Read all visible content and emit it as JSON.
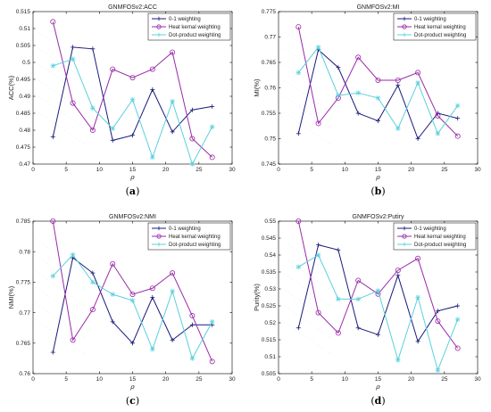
{
  "colors": {
    "s0": "#1a1a7a",
    "s1": "#9a2aa8",
    "s2": "#5ad0dc"
  },
  "chart_data": [
    {
      "type": "line",
      "panel": "a",
      "title": "GNMFOSv2:ACC",
      "xlabel": "ρ",
      "ylabel": "ACC(%)",
      "xlim": [
        0,
        30
      ],
      "ylim": [
        0.47,
        0.515
      ],
      "xticks": [
        0,
        5,
        10,
        15,
        20,
        25,
        30
      ],
      "yticks": [
        0.47,
        0.475,
        0.48,
        0.485,
        0.49,
        0.495,
        0.5,
        0.505,
        0.51,
        0.515
      ],
      "ytick_labels": [
        "0.47",
        "0.475",
        "0.48",
        "0.485",
        "0.49",
        "0.495",
        "0.5",
        "0.505",
        "0.51",
        "0.515"
      ],
      "x": [
        3,
        6,
        9,
        12,
        15,
        18,
        21,
        24,
        27
      ],
      "grid": false,
      "legend": "top-right",
      "series": [
        {
          "name": "0-1 weighting",
          "values": [
            0.478,
            0.5045,
            0.504,
            0.477,
            0.4785,
            0.492,
            0.4795,
            0.486,
            0.487
          ]
        },
        {
          "name": "Heat kernal weighting",
          "values": [
            0.512,
            0.488,
            0.48,
            0.498,
            0.4955,
            0.498,
            0.503,
            0.4775,
            0.472
          ]
        },
        {
          "name": "Dot-product weighting",
          "values": [
            0.499,
            0.501,
            0.4865,
            0.4805,
            0.489,
            0.472,
            0.4885,
            0.47,
            0.481
          ]
        }
      ]
    },
    {
      "type": "line",
      "panel": "b",
      "title": "GNMFOSv2:MI",
      "xlabel": "ρ",
      "ylabel": "MI(%)",
      "xlim": [
        0,
        30
      ],
      "ylim": [
        0.745,
        0.775
      ],
      "xticks": [
        0,
        5,
        10,
        15,
        20,
        25,
        30
      ],
      "yticks": [
        0.745,
        0.75,
        0.755,
        0.76,
        0.765,
        0.77,
        0.775
      ],
      "ytick_labels": [
        "0.745",
        "0.75",
        "0.755",
        "0.76",
        "0.765",
        "0.77",
        "0.775"
      ],
      "x": [
        3,
        6,
        9,
        12,
        15,
        18,
        21,
        24,
        27
      ],
      "grid": false,
      "legend": "top-right",
      "series": [
        {
          "name": "0-1 weighting",
          "values": [
            0.751,
            0.7675,
            0.764,
            0.755,
            0.7535,
            0.7605,
            0.75,
            0.755,
            0.754
          ]
        },
        {
          "name": "Heat kernal weighting",
          "values": [
            0.772,
            0.753,
            0.758,
            0.766,
            0.7615,
            0.7615,
            0.763,
            0.7545,
            0.7505
          ]
        },
        {
          "name": "Dot-product weighting",
          "values": [
            0.763,
            0.768,
            0.7585,
            0.759,
            0.758,
            0.752,
            0.761,
            0.751,
            0.7565
          ]
        }
      ]
    },
    {
      "type": "line",
      "panel": "c",
      "title": "GNMFOSv2:NMI",
      "xlabel": "ρ",
      "ylabel": "NMI(%)",
      "xlim": [
        0,
        30
      ],
      "ylim": [
        0.76,
        0.785
      ],
      "xticks": [
        0,
        5,
        10,
        15,
        20,
        25,
        30
      ],
      "yticks": [
        0.76,
        0.765,
        0.77,
        0.775,
        0.78,
        0.785
      ],
      "ytick_labels": [
        "0.76",
        "0.765",
        "0.77",
        "0.775",
        "0.78",
        "0.785"
      ],
      "x": [
        3,
        6,
        9,
        12,
        15,
        18,
        21,
        24,
        27
      ],
      "grid": false,
      "legend": "top-right",
      "series": [
        {
          "name": "0-1 weighting",
          "values": [
            0.7635,
            0.779,
            0.7765,
            0.7685,
            0.765,
            0.7725,
            0.7655,
            0.768,
            0.768
          ]
        },
        {
          "name": "Heat kernal weighting",
          "values": [
            0.785,
            0.7655,
            0.7705,
            0.778,
            0.773,
            0.774,
            0.7765,
            0.7695,
            0.762
          ]
        },
        {
          "name": "Dot-product weighting",
          "values": [
            0.776,
            0.7795,
            0.775,
            0.773,
            0.772,
            0.764,
            0.7735,
            0.7625,
            0.7685
          ]
        }
      ]
    },
    {
      "type": "line",
      "panel": "d",
      "title": "GNMFOSv2:Putiry",
      "xlabel": "ρ",
      "ylabel": "Purity(%)",
      "xlim": [
        0,
        30
      ],
      "ylim": [
        0.505,
        0.55
      ],
      "xticks": [
        0,
        5,
        10,
        15,
        20,
        25,
        30
      ],
      "yticks": [
        0.505,
        0.51,
        0.515,
        0.52,
        0.525,
        0.53,
        0.535,
        0.54,
        0.545,
        0.55
      ],
      "ytick_labels": [
        "0.505",
        "0.51",
        "0.515",
        "0.52",
        "0.525",
        "0.53",
        "0.535",
        "0.54",
        "0.545",
        "0.55"
      ],
      "x": [
        3,
        6,
        9,
        12,
        15,
        18,
        21,
        24,
        27
      ],
      "grid": false,
      "legend": "top-right",
      "series": [
        {
          "name": "0-1 weighting",
          "values": [
            0.5185,
            0.543,
            0.5415,
            0.5185,
            0.5165,
            0.534,
            0.5145,
            0.5235,
            0.525
          ]
        },
        {
          "name": "Heat kernal weighting",
          "values": [
            0.55,
            0.523,
            0.517,
            0.5325,
            0.5285,
            0.5355,
            0.539,
            0.5205,
            0.5125
          ]
        },
        {
          "name": "Dot-product weighting",
          "values": [
            0.5365,
            0.54,
            0.527,
            0.527,
            0.5295,
            0.509,
            0.5275,
            0.506,
            0.521
          ]
        }
      ]
    }
  ]
}
